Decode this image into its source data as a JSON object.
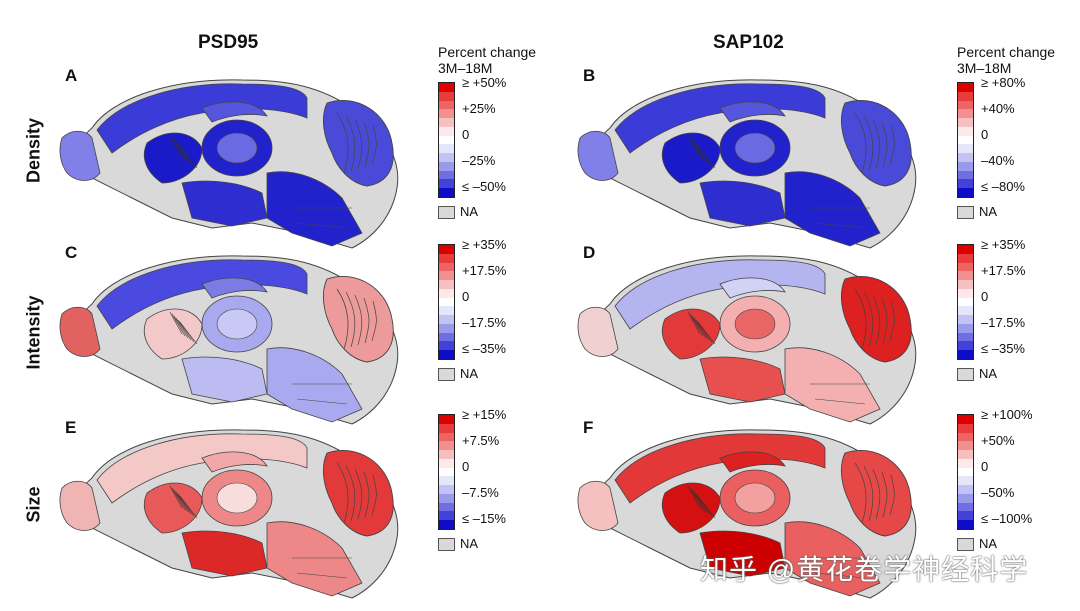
{
  "columns": [
    "PSD95",
    "SAP102"
  ],
  "rows": [
    "Density",
    "Intensity",
    "Size"
  ],
  "legend_title": [
    "Percent change",
    "3M–18M"
  ],
  "na_label": "NA",
  "watermark": "知乎 @黄花卷学神经科学",
  "colors": {
    "strong_red": "#e41a1c",
    "light_red": "#f4a6a6",
    "white": "#ffffff",
    "light_blue": "#a7a7f0",
    "strong_blue": "#1c1cd6",
    "na_gray": "#d9d9d9"
  },
  "panels": [
    {
      "letter": "A",
      "gene": "PSD95",
      "metric": "Density",
      "ticks": [
        "≥ +50%",
        "+25%",
        "0",
        "–25%",
        "≤ –50%"
      ],
      "tone": "blue_strong"
    },
    {
      "letter": "B",
      "gene": "SAP102",
      "metric": "Density",
      "ticks": [
        "≥ +80%",
        "+40%",
        "0",
        "–40%",
        "≤ –80%"
      ],
      "tone": "blue_strong"
    },
    {
      "letter": "C",
      "gene": "PSD95",
      "metric": "Intensity",
      "ticks": [
        "≥ +35%",
        "+17.5%",
        "0",
        "–17.5%",
        "≤ –35%"
      ],
      "tone": "mixed_blue"
    },
    {
      "letter": "D",
      "gene": "SAP102",
      "metric": "Intensity",
      "ticks": [
        "≥ +35%",
        "+17.5%",
        "0",
        "–17.5%",
        "≤ –35%"
      ],
      "tone": "mixed_red"
    },
    {
      "letter": "E",
      "gene": "PSD95",
      "metric": "Size",
      "ticks": [
        "≥ +15%",
        "+7.5%",
        "0",
        "–7.5%",
        "≤ –15%"
      ],
      "tone": "red_light"
    },
    {
      "letter": "F",
      "gene": "SAP102",
      "metric": "Size",
      "ticks": [
        "≥ +100%",
        "+50%",
        "0",
        "–50%",
        "≤ –100%"
      ],
      "tone": "red_strong"
    }
  ]
}
